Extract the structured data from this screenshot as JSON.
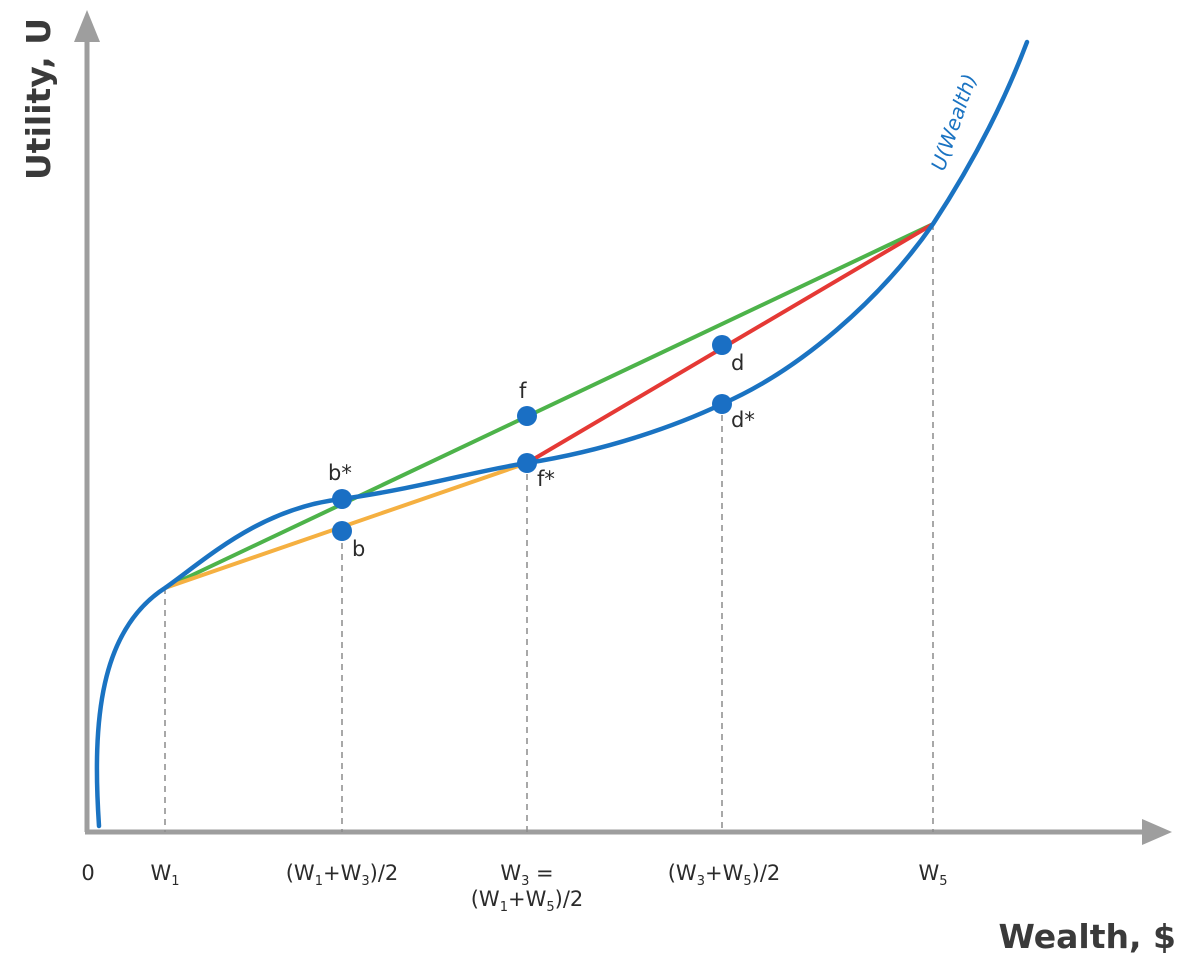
{
  "axes": {
    "y_title": "Utility, U",
    "x_title": "Wealth, $",
    "axis_color": "#9e9e9e"
  },
  "x_ticks": {
    "zero": "0",
    "w1": {
      "main": "W",
      "sub": "1"
    },
    "mid13": {
      "p1": "(W",
      "s1": "1",
      "p2": "+W",
      "s2": "3",
      "p3": ")/2"
    },
    "w3_line1": {
      "p1": "W",
      "s1": "3",
      "p2": " ="
    },
    "w3_line2": {
      "p1": "(W",
      "s1": "1",
      "p2": "+W",
      "s2": "5",
      "p3": ")/2"
    },
    "mid35": {
      "p1": "(W",
      "s1": "3",
      "p2": "+W",
      "s2": "5",
      "p3": ")/2"
    },
    "w5": {
      "main": "W",
      "sub": "5"
    }
  },
  "curve": {
    "label": "U(Wealth)",
    "color": "#1a73c2"
  },
  "chords": {
    "green": "#4db34a",
    "orange": "#f5b041",
    "red": "#e53935"
  },
  "points": {
    "color": "#1a6fc4",
    "b_star": "b*",
    "b": "b",
    "f": "f",
    "f_star": "f*",
    "d": "d",
    "d_star": "d*"
  },
  "guide_color": "#8c8c8c"
}
